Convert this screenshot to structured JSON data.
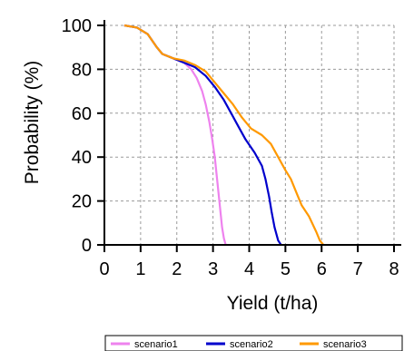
{
  "chart_data": {
    "type": "line",
    "title": "",
    "xlabel": "Yield (t/ha)",
    "ylabel": "Probability (%)",
    "xlim": [
      0,
      8
    ],
    "ylim": [
      0,
      100
    ],
    "x_ticks": [
      "0",
      "1",
      "2",
      "3",
      "4",
      "5",
      "6",
      "7",
      "8"
    ],
    "y_ticks": [
      "0",
      "20",
      "40",
      "60",
      "80",
      "100"
    ],
    "grid": true,
    "legend_position": "bottom",
    "series": [
      {
        "name": "scenario1",
        "color": "#ee82ee",
        "points": [
          [
            0.55,
            100
          ],
          [
            0.9,
            99
          ],
          [
            1.2,
            96
          ],
          [
            1.45,
            90
          ],
          [
            1.6,
            87
          ],
          [
            1.9,
            85
          ],
          [
            2.2,
            83
          ],
          [
            2.4,
            80
          ],
          [
            2.55,
            76
          ],
          [
            2.7,
            70
          ],
          [
            2.8,
            64
          ],
          [
            2.9,
            56
          ],
          [
            2.98,
            48
          ],
          [
            3.05,
            40
          ],
          [
            3.1,
            32
          ],
          [
            3.15,
            24
          ],
          [
            3.2,
            16
          ],
          [
            3.25,
            8
          ],
          [
            3.3,
            3
          ],
          [
            3.35,
            0
          ]
        ]
      },
      {
        "name": "scenario2",
        "color": "#0000cc",
        "points": [
          [
            0.55,
            100
          ],
          [
            0.9,
            99
          ],
          [
            1.2,
            96
          ],
          [
            1.45,
            90
          ],
          [
            1.6,
            87
          ],
          [
            1.9,
            85
          ],
          [
            2.2,
            83
          ],
          [
            2.5,
            81
          ],
          [
            2.8,
            77
          ],
          [
            3.05,
            72
          ],
          [
            3.3,
            66
          ],
          [
            3.5,
            60
          ],
          [
            3.7,
            54
          ],
          [
            3.9,
            48
          ],
          [
            4.15,
            42
          ],
          [
            4.35,
            36
          ],
          [
            4.45,
            30
          ],
          [
            4.55,
            22
          ],
          [
            4.62,
            15
          ],
          [
            4.7,
            8
          ],
          [
            4.8,
            2
          ],
          [
            4.88,
            0
          ]
        ]
      },
      {
        "name": "scenario3",
        "color": "#ff9900",
        "points": [
          [
            0.55,
            100
          ],
          [
            0.9,
            99
          ],
          [
            1.2,
            96
          ],
          [
            1.45,
            90
          ],
          [
            1.6,
            87
          ],
          [
            1.9,
            85
          ],
          [
            2.2,
            84
          ],
          [
            2.5,
            82
          ],
          [
            2.8,
            79
          ],
          [
            3.05,
            74
          ],
          [
            3.3,
            69
          ],
          [
            3.55,
            64
          ],
          [
            3.8,
            58
          ],
          [
            4.05,
            53
          ],
          [
            4.35,
            50
          ],
          [
            4.6,
            46
          ],
          [
            4.8,
            40
          ],
          [
            5.0,
            34
          ],
          [
            5.15,
            30
          ],
          [
            5.3,
            24
          ],
          [
            5.45,
            18
          ],
          [
            5.65,
            13
          ],
          [
            5.85,
            6
          ],
          [
            5.95,
            2
          ],
          [
            6.05,
            0
          ]
        ]
      }
    ]
  }
}
